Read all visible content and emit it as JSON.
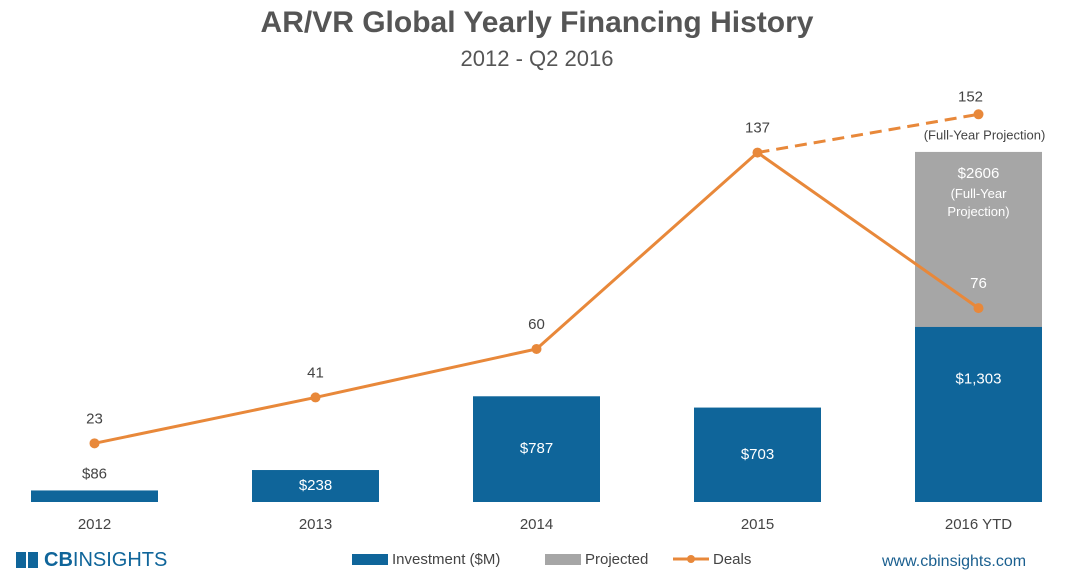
{
  "chart_data": {
    "type": "bar-line",
    "title": "AR/VR Global Yearly Financing History",
    "subtitle": "2012 - Q2 2016",
    "categories": [
      "2012",
      "2013",
      "2014",
      "2015",
      "2016 YTD"
    ],
    "ylim": [
      0,
      3000
    ],
    "y2lim": [
      0,
      158
    ],
    "series": [
      {
        "name": "Investment ($M)",
        "color": "#0f659a",
        "values": [
          86,
          238,
          787,
          703,
          1303
        ],
        "value_labels": [
          "$86",
          "$238",
          "$787",
          "$703",
          "$1,303"
        ]
      },
      {
        "name": "Projected",
        "color": "#a6a6a6",
        "values": [
          null,
          null,
          null,
          null,
          2606
        ],
        "value_labels": [
          null,
          null,
          null,
          null,
          "$2606"
        ],
        "note": "(Full-Year Projection)"
      },
      {
        "name": "Deals",
        "color": "#e8883a",
        "axis": "y2",
        "values": [
          23,
          41,
          60,
          137,
          76
        ]
      }
    ],
    "deals_projection": {
      "values": [
        null,
        null,
        null,
        null,
        152
      ],
      "note": "(Full-Year Projection)"
    },
    "brand": [
      "CB",
      "INSIGHTS"
    ],
    "source": "www.cbinsights.com"
  }
}
